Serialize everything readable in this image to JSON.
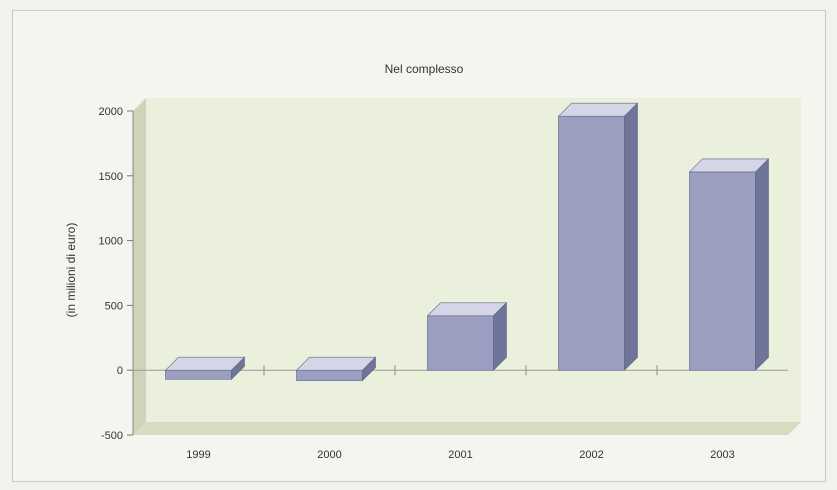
{
  "chart_data": {
    "type": "bar",
    "title": "Nel complesso",
    "xlabel": "",
    "ylabel": "(in milioni di euro)",
    "categories": [
      "1999",
      "2000",
      "2001",
      "2002",
      "2003"
    ],
    "values": [
      -70,
      -80,
      420,
      1960,
      1530
    ],
    "ylim": [
      -500,
      2000
    ],
    "yticks": [
      -500,
      0,
      500,
      1000,
      1500,
      2000
    ],
    "grid": false,
    "legend": "none",
    "colors": {
      "bar_front": "#9a9fc1",
      "bar_top": "#d4d6e8",
      "bar_side": "#6f7499",
      "back_wall": "#ebf0dc",
      "floor": "#d6dcbf",
      "left_wall": "#cfd3b9"
    }
  }
}
